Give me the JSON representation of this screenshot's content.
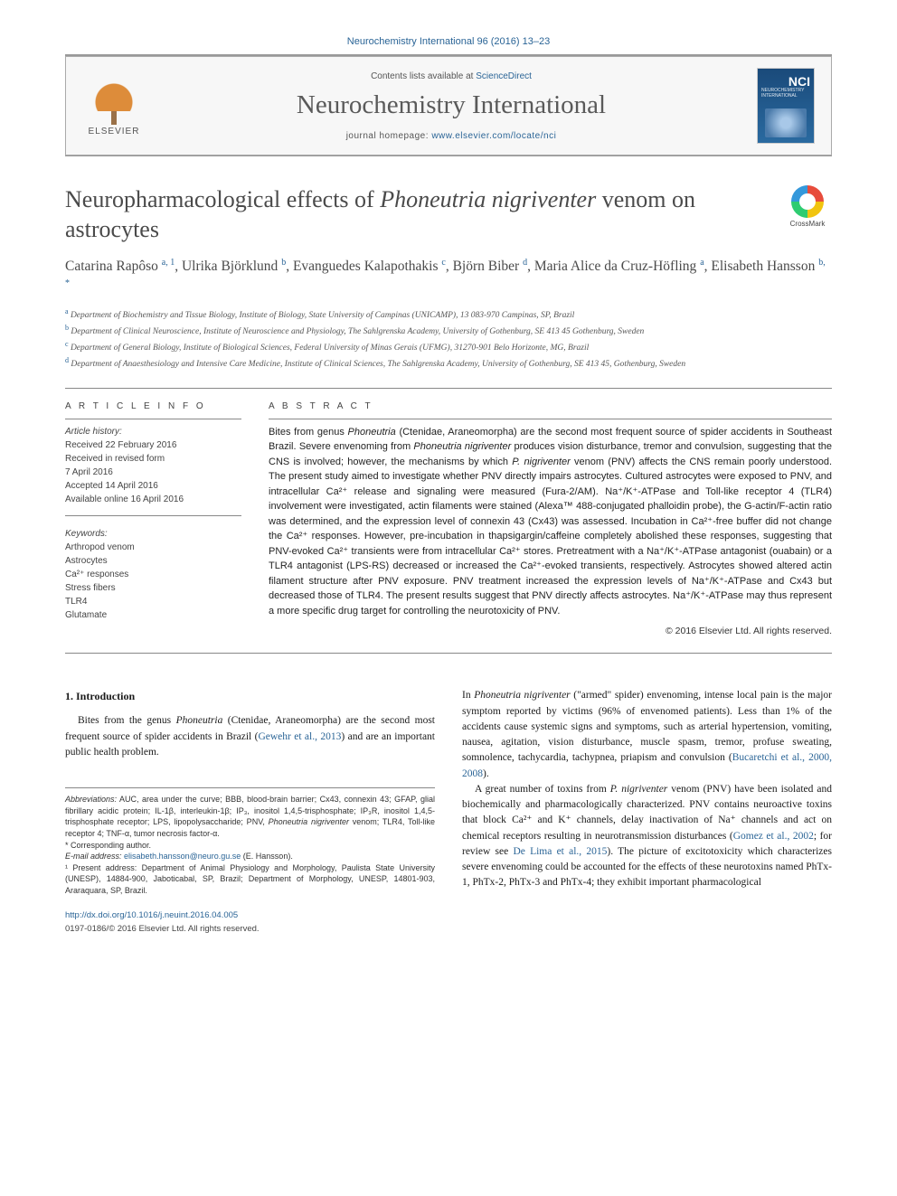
{
  "top_reference": "Neurochemistry International 96 (2016) 13–23",
  "header": {
    "contents_prefix": "Contents lists available at ",
    "contents_link": "ScienceDirect",
    "journal_name": "Neurochemistry International",
    "homepage_prefix": "journal homepage: ",
    "homepage_link": "www.elsevier.com/locate/nci",
    "publisher": "ELSEVIER",
    "cover_code": "NCI",
    "cover_sub": "NEUROCHEMISTRY INTERNATIONAL"
  },
  "crossmark": "CrossMark",
  "title_html": "Neuropharmacological effects of <em>Phoneutria nigriventer</em> venom on astrocytes",
  "authors_html": "Catarina Rapôso <sup>a, 1</sup>, Ulrika Björklund <sup>b</sup>, Evanguedes Kalapothakis <sup>c</sup>, Björn Biber <sup>d</sup>, Maria Alice da Cruz-Höfling <sup>a</sup>, Elisabeth Hansson <sup>b, *</sup>",
  "affiliations": [
    {
      "lab": "a",
      "text": "Department of Biochemistry and Tissue Biology, Institute of Biology, State University of Campinas (UNICAMP), 13 083-970 Campinas, SP, Brazil"
    },
    {
      "lab": "b",
      "text": "Department of Clinical Neuroscience, Institute of Neuroscience and Physiology, The Sahlgrenska Academy, University of Gothenburg, SE 413 45 Gothenburg, Sweden"
    },
    {
      "lab": "c",
      "text": "Department of General Biology, Institute of Biological Sciences, Federal University of Minas Gerais (UFMG), 31270-901 Belo Horizonte, MG, Brazil"
    },
    {
      "lab": "d",
      "text": "Department of Anaesthesiology and Intensive Care Medicine, Institute of Clinical Sciences, The Sahlgrenska Academy, University of Gothenburg, SE 413 45, Gothenburg, Sweden"
    }
  ],
  "article_info_head": "A R T I C L E   I N F O",
  "abstract_head": "A B S T R A C T",
  "history": {
    "label": "Article history:",
    "lines": [
      "Received 22 February 2016",
      "Received in revised form",
      "7 April 2016",
      "Accepted 14 April 2016",
      "Available online 16 April 2016"
    ]
  },
  "keywords": {
    "label": "Keywords:",
    "items": [
      "Arthropod venom",
      "Astrocytes",
      "Ca²⁺ responses",
      "Stress fibers",
      "TLR4",
      "Glutamate"
    ]
  },
  "abstract_html": "Bites from genus <em>Phoneutria</em> (Ctenidae, Araneomorpha) are the second most frequent source of spider accidents in Southeast Brazil. Severe envenoming from <em>Phoneutria nigriventer</em> produces vision disturbance, tremor and convulsion, suggesting that the CNS is involved; however, the mechanisms by which <em>P. nigriventer</em> venom (PNV) affects the CNS remain poorly understood. The present study aimed to investigate whether PNV directly impairs astrocytes. Cultured astrocytes were exposed to PNV, and intracellular Ca²⁺ release and signaling were measured (Fura-2/AM). Na⁺/K⁺-ATPase and Toll-like receptor 4 (TLR4) involvement were investigated, actin filaments were stained (Alexa™ 488-conjugated phalloidin probe), the G-actin/F-actin ratio was determined, and the expression level of connexin 43 (Cx43) was assessed. Incubation in Ca²⁺-free buffer did not change the Ca²⁺ responses. However, pre-incubation in thapsigargin/caffeine completely abolished these responses, suggesting that PNV-evoked Ca²⁺ transients were from intracellular Ca²⁺ stores. Pretreatment with a Na⁺/K⁺-ATPase antagonist (ouabain) or a TLR4 antagonist (LPS-RS) decreased or increased the Ca²⁺-evoked transients, respectively. Astrocytes showed altered actin filament structure after PNV exposure. PNV treatment increased the expression levels of Na⁺/K⁺-ATPase and Cx43 but decreased those of TLR4. The present results suggest that PNV directly affects astrocytes. Na⁺/K⁺-ATPase may thus represent a more specific drug target for controlling the neurotoxicity of PNV.",
  "copyright": "© 2016 Elsevier Ltd. All rights reserved.",
  "section1_head": "1. Introduction",
  "col1_para1_html": "Bites from the genus <em>Phoneutria</em> (Ctenidae, Araneomorpha) are the second most frequent source of spider accidents in Brazil (<a>Gewehr et al., 2013</a>) and are an important public health problem.",
  "col2_para1_html": "In <em>Phoneutria nigriventer</em> (\"armed\" spider) envenoming, intense local pain is the major symptom reported by victims (96% of envenomed patients). Less than 1% of the accidents cause systemic signs and symptoms, such as arterial hypertension, vomiting, nausea, agitation, vision disturbance, muscle spasm, tremor, profuse sweating, somnolence, tachycardia, tachypnea, priapism and convulsion (<a>Bucaretchi et al., 2000, 2008</a>).",
  "col2_para2_html": "A great number of toxins from <em>P. nigriventer</em> venom (PNV) have been isolated and biochemically and pharmacologically characterized. PNV contains neuroactive toxins that block Ca²⁺ and K⁺ channels, delay inactivation of Na⁺ channels and act on chemical receptors resulting in neurotransmission disturbances (<a>Gomez et al., 2002</a>; for review see <a>De Lima et al., 2015</a>). The picture of excitotoxicity which characterizes severe envenoming could be accounted for the effects of these neurotoxins named PhTx-1, PhTx-2, PhTx-3 and PhTx-4; they exhibit important pharmacological",
  "footnotes": {
    "abbreviations_label": "Abbreviations:",
    "abbreviations_html": "AUC, area under the curve; BBB, blood-brain barrier; Cx43, connexin 43; GFAP, glial fibrillary acidic protein; IL-1β, interleukin-1β; IP₃, inositol 1,4,5-trisphosphate; IP₃R, inositol 1,4,5-trisphosphate receptor; LPS, lipopolysaccharide; PNV, <em>Phoneutria nigriventer</em> venom; TLR4, Toll-like receptor 4; TNF-α, tumor necrosis factor-α.",
    "corresponding": "* Corresponding author.",
    "email_label": "E-mail address:",
    "email": "elisabeth.hansson@neuro.gu.se",
    "email_name": "(E. Hansson).",
    "present_html": "¹ Present address: Department of Animal Physiology and Morphology, Paulista State University (UNESP), 14884-900, Jaboticabal, SP, Brazil; Department of Morphology, UNESP, 14801-903, Araraquara, SP, Brazil."
  },
  "bottom": {
    "doi": "http://dx.doi.org/10.1016/j.neuint.2016.04.005",
    "issn_line": "0197-0186/© 2016 Elsevier Ltd. All rights reserved."
  },
  "colors": {
    "link": "#2a6496",
    "heading_gray": "#4a4a4a",
    "rule": "#888888",
    "box_bg": "#f7f7f7"
  }
}
